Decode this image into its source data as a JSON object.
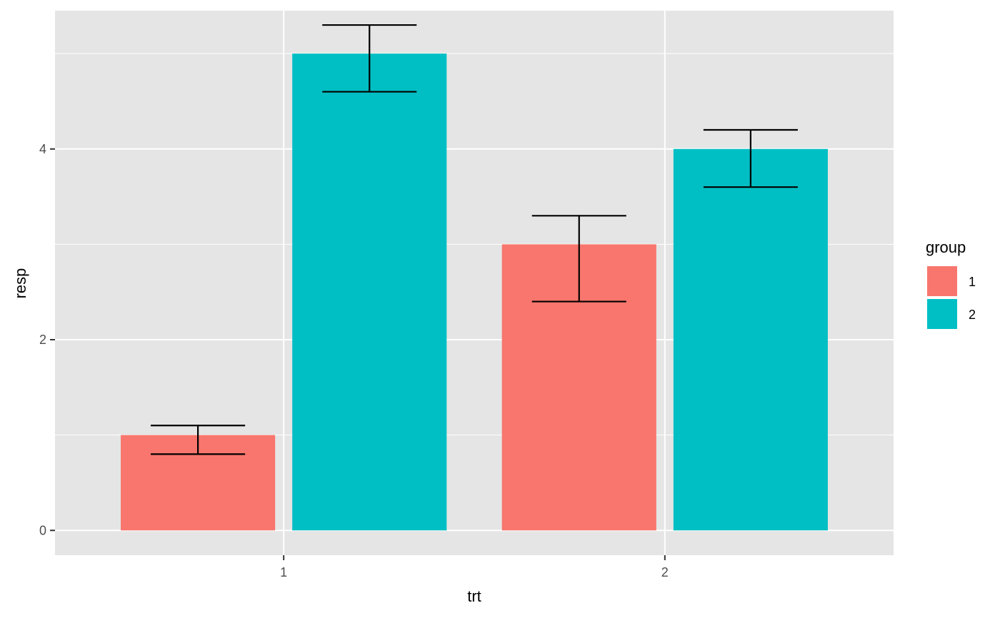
{
  "chart_data": {
    "type": "bar",
    "xlabel": "trt",
    "ylabel": "resp",
    "categories": [
      "1",
      "2"
    ],
    "ylim": [
      -0.26,
      5.45
    ],
    "y_ticks": [
      0,
      2,
      4
    ],
    "y_tick_labels": [
      "0",
      "2",
      "4"
    ],
    "grid": true,
    "legend": {
      "title": "group",
      "placement": "right",
      "entries": [
        {
          "label": "1",
          "color": "#F8766D"
        },
        {
          "label": "2",
          "color": "#00BFC4"
        }
      ]
    },
    "series": [
      {
        "name": "1",
        "color": "#F8766D",
        "values": [
          1,
          3
        ],
        "lower": [
          0.8,
          2.4
        ],
        "upper": [
          1.1,
          3.3
        ]
      },
      {
        "name": "2",
        "color": "#00BFC4",
        "values": [
          5,
          4
        ],
        "lower": [
          4.6,
          3.6
        ],
        "upper": [
          5.3,
          4.2
        ]
      }
    ],
    "colors": {
      "panel": "#E5E5E5",
      "grid": "#FFFFFF",
      "errorbar": "#000000"
    }
  }
}
